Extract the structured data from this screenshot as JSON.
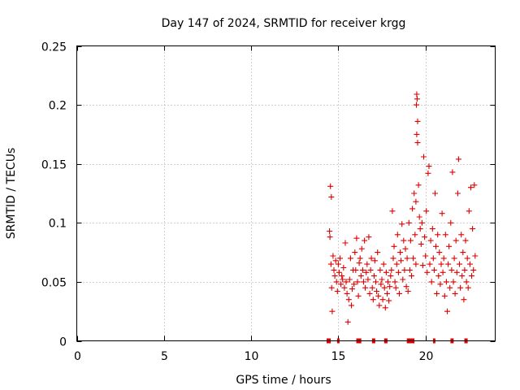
{
  "chart_data": {
    "type": "scatter",
    "title": "Day 147 of 2024, SRMTID for receiver krgg",
    "xlabel": "GPS time / hours",
    "ylabel": "SRMTID / TECUs",
    "xlim": [
      0,
      24
    ],
    "ylim": [
      0,
      0.25
    ],
    "xticks": [
      0,
      5,
      10,
      15,
      20
    ],
    "xtick_labels": [
      "0",
      "5",
      "10",
      "15",
      "20"
    ],
    "yticks": [
      0,
      0.05,
      0.1,
      0.15,
      0.2,
      0.25
    ],
    "ytick_labels": [
      "0",
      "0.05",
      "0.1",
      "0.15",
      "0.2",
      "0.25"
    ],
    "grid": true,
    "marker": "+",
    "color": "#e00000",
    "series": [
      {
        "name": "SRMTID",
        "points": [
          [
            14.55,
            0.131
          ],
          [
            14.6,
            0.122
          ],
          [
            14.5,
            0.093
          ],
          [
            14.52,
            0.088
          ],
          [
            14.58,
            0.065
          ],
          [
            14.62,
            0.045
          ],
          [
            14.65,
            0.025
          ],
          [
            14.7,
            0.072
          ],
          [
            14.75,
            0.06
          ],
          [
            14.8,
            0.055
          ],
          [
            14.85,
            0.068
          ],
          [
            14.9,
            0.05
          ],
          [
            14.95,
            0.042
          ],
          [
            15.0,
            0.065
          ],
          [
            15.05,
            0.058
          ],
          [
            15.1,
            0.07
          ],
          [
            15.15,
            0.048
          ],
          [
            15.2,
            0.055
          ],
          [
            15.25,
            0.052
          ],
          [
            15.3,
            0.062
          ],
          [
            15.35,
            0.045
          ],
          [
            15.4,
            0.083
          ],
          [
            15.45,
            0.05
          ],
          [
            15.5,
            0.04
          ],
          [
            15.55,
            0.016
          ],
          [
            15.6,
            0.035
          ],
          [
            15.65,
            0.052
          ],
          [
            15.7,
            0.07
          ],
          [
            15.75,
            0.03
          ],
          [
            15.8,
            0.044
          ],
          [
            15.85,
            0.06
          ],
          [
            15.9,
            0.048
          ],
          [
            15.95,
            0.075
          ],
          [
            16.0,
            0.06
          ],
          [
            16.05,
            0.087
          ],
          [
            16.1,
            0.05
          ],
          [
            16.15,
            0.038
          ],
          [
            16.2,
            0.066
          ],
          [
            16.25,
            0.07
          ],
          [
            16.3,
            0.055
          ],
          [
            16.35,
            0.078
          ],
          [
            16.4,
            0.06
          ],
          [
            16.45,
            0.05
          ],
          [
            16.5,
            0.085
          ],
          [
            16.55,
            0.045
          ],
          [
            16.6,
            0.058
          ],
          [
            16.65,
            0.065
          ],
          [
            16.7,
            0.052
          ],
          [
            16.75,
            0.088
          ],
          [
            16.8,
            0.04
          ],
          [
            16.85,
            0.06
          ],
          [
            16.9,
            0.07
          ],
          [
            16.95,
            0.045
          ],
          [
            17.0,
            0.035
          ],
          [
            17.05,
            0.055
          ],
          [
            17.1,
            0.068
          ],
          [
            17.15,
            0.05
          ],
          [
            17.2,
            0.042
          ],
          [
            17.25,
            0.075
          ],
          [
            17.3,
            0.038
          ],
          [
            17.35,
            0.03
          ],
          [
            17.4,
            0.06
          ],
          [
            17.45,
            0.048
          ],
          [
            17.5,
            0.052
          ],
          [
            17.55,
            0.035
          ],
          [
            17.6,
            0.065
          ],
          [
            17.65,
            0.045
          ],
          [
            17.7,
            0.028
          ],
          [
            17.75,
            0.058
          ],
          [
            17.8,
            0.04
          ],
          [
            17.85,
            0.05
          ],
          [
            17.9,
            0.034
          ],
          [
            17.95,
            0.046
          ],
          [
            18.0,
            0.055
          ],
          [
            18.05,
            0.06
          ],
          [
            18.1,
            0.11
          ],
          [
            18.15,
            0.07
          ],
          [
            18.2,
            0.08
          ],
          [
            18.25,
            0.05
          ],
          [
            18.3,
            0.045
          ],
          [
            18.35,
            0.065
          ],
          [
            18.4,
            0.09
          ],
          [
            18.45,
            0.058
          ],
          [
            18.5,
            0.04
          ],
          [
            18.55,
            0.075
          ],
          [
            18.6,
            0.068
          ],
          [
            18.65,
            0.099
          ],
          [
            18.7,
            0.052
          ],
          [
            18.75,
            0.085
          ],
          [
            18.8,
            0.06
          ],
          [
            18.85,
            0.078
          ],
          [
            18.9,
            0.046
          ],
          [
            18.95,
            0.07
          ],
          [
            19.0,
            0.042
          ],
          [
            19.05,
            0.1
          ],
          [
            19.1,
            0.06
          ],
          [
            19.15,
            0.085
          ],
          [
            19.2,
            0.055
          ],
          [
            19.25,
            0.112
          ],
          [
            19.3,
            0.07
          ],
          [
            19.35,
            0.125
          ],
          [
            19.4,
            0.09
          ],
          [
            19.45,
            0.065
          ],
          [
            19.5,
            0.209
          ],
          [
            19.52,
            0.205
          ],
          [
            19.48,
            0.2
          ],
          [
            19.55,
            0.186
          ],
          [
            19.5,
            0.175
          ],
          [
            19.55,
            0.168
          ],
          [
            19.6,
            0.132
          ],
          [
            19.45,
            0.118
          ],
          [
            19.65,
            0.105
          ],
          [
            19.7,
            0.095
          ],
          [
            19.75,
            0.082
          ],
          [
            19.8,
            0.1
          ],
          [
            19.85,
            0.064
          ],
          [
            19.9,
            0.156
          ],
          [
            19.95,
            0.088
          ],
          [
            20.0,
            0.072
          ],
          [
            20.05,
            0.11
          ],
          [
            20.1,
            0.058
          ],
          [
            20.15,
            0.142
          ],
          [
            20.2,
            0.148
          ],
          [
            20.25,
            0.065
          ],
          [
            20.3,
            0.085
          ],
          [
            20.35,
            0.05
          ],
          [
            20.4,
            0.095
          ],
          [
            20.45,
            0.07
          ],
          [
            20.5,
            0.06
          ],
          [
            20.55,
            0.125
          ],
          [
            20.6,
            0.08
          ],
          [
            20.65,
            0.04
          ],
          [
            20.7,
            0.09
          ],
          [
            20.75,
            0.055
          ],
          [
            20.8,
            0.075
          ],
          [
            20.85,
            0.048
          ],
          [
            20.9,
            0.065
          ],
          [
            20.95,
            0.108
          ],
          [
            21.0,
            0.058
          ],
          [
            21.05,
            0.07
          ],
          [
            21.1,
            0.038
          ],
          [
            21.15,
            0.09
          ],
          [
            21.2,
            0.05
          ],
          [
            21.25,
            0.025
          ],
          [
            21.3,
            0.065
          ],
          [
            21.35,
            0.08
          ],
          [
            21.4,
            0.045
          ],
          [
            21.45,
            0.1
          ],
          [
            21.5,
            0.06
          ],
          [
            21.55,
            0.143
          ],
          [
            21.6,
            0.05
          ],
          [
            21.65,
            0.07
          ],
          [
            21.7,
            0.04
          ],
          [
            21.75,
            0.085
          ],
          [
            21.8,
            0.058
          ],
          [
            21.85,
            0.125
          ],
          [
            21.9,
            0.154
          ],
          [
            21.95,
            0.065
          ],
          [
            22.0,
            0.045
          ],
          [
            22.05,
            0.09
          ],
          [
            22.1,
            0.055
          ],
          [
            22.15,
            0.075
          ],
          [
            22.2,
            0.035
          ],
          [
            22.25,
            0.06
          ],
          [
            22.3,
            0.085
          ],
          [
            22.35,
            0.05
          ],
          [
            22.4,
            0.07
          ],
          [
            22.45,
            0.045
          ],
          [
            22.5,
            0.11
          ],
          [
            22.55,
            0.065
          ],
          [
            22.6,
            0.13
          ],
          [
            22.65,
            0.055
          ],
          [
            22.7,
            0.095
          ],
          [
            22.75,
            0.06
          ],
          [
            22.8,
            0.132
          ],
          [
            22.85,
            0.072
          ]
        ]
      }
    ],
    "zero_points_x": [
      14.4,
      14.45,
      14.5,
      15.0,
      16.1,
      16.15,
      16.2,
      16.25,
      17.0,
      17.05,
      17.7,
      17.75,
      19.0,
      19.05,
      19.1,
      19.2,
      19.25,
      19.3,
      20.5,
      21.5,
      21.55,
      22.3,
      22.35
    ]
  }
}
